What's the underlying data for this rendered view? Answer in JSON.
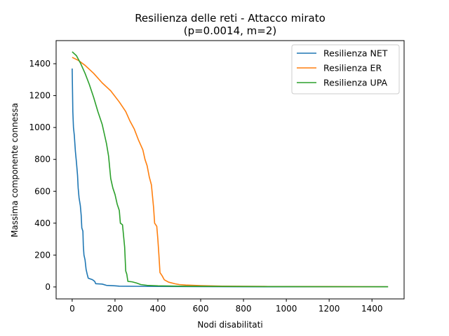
{
  "chart_data": {
    "type": "line",
    "title": "Resilienza delle reti - Attacco mirato",
    "subtitle": "(p=0.0014, m=2)",
    "xlabel": "Nodi disabilitati",
    "ylabel": "Massima componente connessa",
    "xlim": [
      -75,
      1550
    ],
    "ylim": [
      -75,
      1545
    ],
    "xticks": [
      0,
      200,
      400,
      600,
      800,
      1000,
      1200,
      1400
    ],
    "yticks": [
      0,
      200,
      400,
      600,
      800,
      1000,
      1200,
      1400
    ],
    "grid": false,
    "legend_position": "top-right",
    "series": [
      {
        "name": "Resilienza NET",
        "color": "#1f77b4",
        "points": [
          [
            0,
            1370
          ],
          [
            3,
            1100
          ],
          [
            6,
            1000
          ],
          [
            10,
            950
          ],
          [
            15,
            850
          ],
          [
            20,
            780
          ],
          [
            25,
            700
          ],
          [
            28,
            620
          ],
          [
            32,
            560
          ],
          [
            38,
            510
          ],
          [
            42,
            450
          ],
          [
            45,
            370
          ],
          [
            50,
            350
          ],
          [
            52,
            260
          ],
          [
            55,
            200
          ],
          [
            60,
            170
          ],
          [
            65,
            110
          ],
          [
            70,
            80
          ],
          [
            75,
            55
          ],
          [
            85,
            50
          ],
          [
            95,
            45
          ],
          [
            105,
            35
          ],
          [
            110,
            20
          ],
          [
            140,
            18
          ],
          [
            160,
            10
          ],
          [
            200,
            7
          ],
          [
            220,
            5
          ],
          [
            300,
            4
          ],
          [
            400,
            3
          ],
          [
            600,
            2
          ],
          [
            1000,
            1
          ],
          [
            1475,
            1
          ]
        ]
      },
      {
        "name": "Resilienza ER",
        "color": "#ff7f0e",
        "points": [
          [
            0,
            1440
          ],
          [
            30,
            1420
          ],
          [
            60,
            1390
          ],
          [
            100,
            1340
          ],
          [
            140,
            1280
          ],
          [
            180,
            1230
          ],
          [
            220,
            1160
          ],
          [
            250,
            1100
          ],
          [
            270,
            1040
          ],
          [
            290,
            990
          ],
          [
            310,
            920
          ],
          [
            330,
            860
          ],
          [
            340,
            800
          ],
          [
            350,
            760
          ],
          [
            360,
            690
          ],
          [
            370,
            640
          ],
          [
            380,
            500
          ],
          [
            385,
            400
          ],
          [
            395,
            380
          ],
          [
            400,
            300
          ],
          [
            405,
            200
          ],
          [
            410,
            90
          ],
          [
            420,
            70
          ],
          [
            430,
            45
          ],
          [
            450,
            30
          ],
          [
            480,
            20
          ],
          [
            500,
            15
          ],
          [
            530,
            12
          ],
          [
            600,
            8
          ],
          [
            700,
            5
          ],
          [
            900,
            3
          ],
          [
            1200,
            2
          ],
          [
            1475,
            1
          ]
        ]
      },
      {
        "name": "Resilienza UPA",
        "color": "#2ca02c",
        "points": [
          [
            0,
            1475
          ],
          [
            20,
            1450
          ],
          [
            40,
            1400
          ],
          [
            60,
            1340
          ],
          [
            80,
            1270
          ],
          [
            100,
            1190
          ],
          [
            120,
            1100
          ],
          [
            140,
            1020
          ],
          [
            150,
            960
          ],
          [
            160,
            900
          ],
          [
            170,
            820
          ],
          [
            180,
            680
          ],
          [
            190,
            620
          ],
          [
            200,
            580
          ],
          [
            210,
            520
          ],
          [
            220,
            480
          ],
          [
            225,
            400
          ],
          [
            235,
            390
          ],
          [
            240,
            320
          ],
          [
            245,
            250
          ],
          [
            250,
            100
          ],
          [
            255,
            80
          ],
          [
            260,
            35
          ],
          [
            280,
            32
          ],
          [
            300,
            25
          ],
          [
            320,
            15
          ],
          [
            350,
            10
          ],
          [
            400,
            7
          ],
          [
            500,
            5
          ],
          [
            700,
            3
          ],
          [
            1000,
            2
          ],
          [
            1475,
            1
          ]
        ]
      }
    ]
  }
}
